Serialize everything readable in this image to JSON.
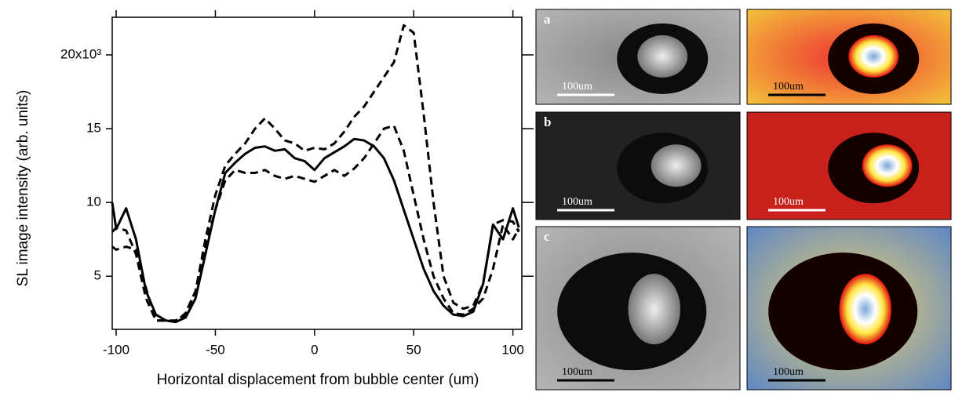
{
  "chart_data": {
    "type": "line",
    "xlabel": "Horizontal displacement from bubble center (um)",
    "ylabel": "SL image intensity (arb. units)",
    "x": [
      -102,
      -100,
      -95,
      -90,
      -85,
      -80,
      -75,
      -70,
      -65,
      -60,
      -55,
      -50,
      -45,
      -40,
      -35,
      -30,
      -25,
      -20,
      -15,
      -10,
      -5,
      0,
      5,
      10,
      15,
      20,
      25,
      30,
      35,
      40,
      45,
      50,
      55,
      60,
      65,
      70,
      75,
      80,
      85,
      90,
      95,
      100,
      103
    ],
    "xlim": [
      -102,
      104.5
    ],
    "xticks": [
      -100,
      -50,
      0,
      50,
      100
    ],
    "ylim": [
      1.4,
      22.55
    ],
    "yticks": [
      5,
      10,
      15,
      {
        "value": 20,
        "label": "20x10³"
      }
    ],
    "grid": false,
    "series": [
      {
        "color": "#000000",
        "dash": false,
        "values": [
          10.0,
          8.2,
          9.6,
          7.5,
          4.0,
          2.4,
          2.0,
          1.9,
          2.2,
          3.5,
          6.5,
          9.5,
          12.0,
          12.7,
          13.3,
          13.7,
          13.8,
          13.5,
          13.6,
          13.0,
          12.8,
          12.2,
          13.0,
          13.4,
          13.8,
          14.3,
          14.2,
          13.8,
          13.0,
          11.5,
          9.5,
          7.5,
          5.5,
          4.0,
          3.0,
          2.4,
          2.3,
          2.6,
          4.5,
          8.5,
          7.5,
          9.6,
          8.3
        ]
      },
      {
        "color": "#000000",
        "dash": true,
        "values": [
          8.0,
          8.3,
          8.1,
          6.5,
          3.5,
          2.0,
          2.0,
          2.0,
          2.4,
          4.0,
          7.5,
          10.5,
          12.5,
          13.3,
          14.0,
          15.0,
          15.7,
          15.0,
          14.2,
          14.0,
          13.5,
          13.7,
          13.6,
          14.0,
          14.8,
          15.8,
          16.5,
          17.5,
          18.5,
          19.5,
          22.0,
          21.5,
          16.0,
          10.0,
          5.0,
          3.2,
          2.8,
          3.0,
          4.5,
          8.5,
          8.8,
          8.7,
          8.0
        ]
      },
      {
        "color": "#000000",
        "dash": true,
        "values": [
          7.0,
          6.8,
          7.0,
          6.8,
          4.2,
          2.0,
          2.0,
          1.9,
          2.5,
          4.0,
          7.0,
          9.5,
          11.5,
          12.2,
          12.0,
          12.0,
          12.2,
          11.8,
          11.6,
          11.8,
          11.6,
          11.4,
          11.8,
          12.2,
          11.8,
          12.3,
          13.0,
          14.0,
          15.0,
          15.2,
          13.5,
          10.5,
          7.5,
          5.0,
          3.5,
          2.5,
          2.4,
          2.8,
          3.5,
          5.5,
          8.5,
          7.5,
          8.2
        ]
      }
    ]
  },
  "panels": [
    {
      "label": "a",
      "scale_bars": [
        "100um",
        "100um"
      ]
    },
    {
      "label": "b",
      "scale_bars": [
        "100um",
        "100um"
      ]
    },
    {
      "label": "c",
      "scale_bars": [
        "100um",
        "100um"
      ]
    }
  ]
}
